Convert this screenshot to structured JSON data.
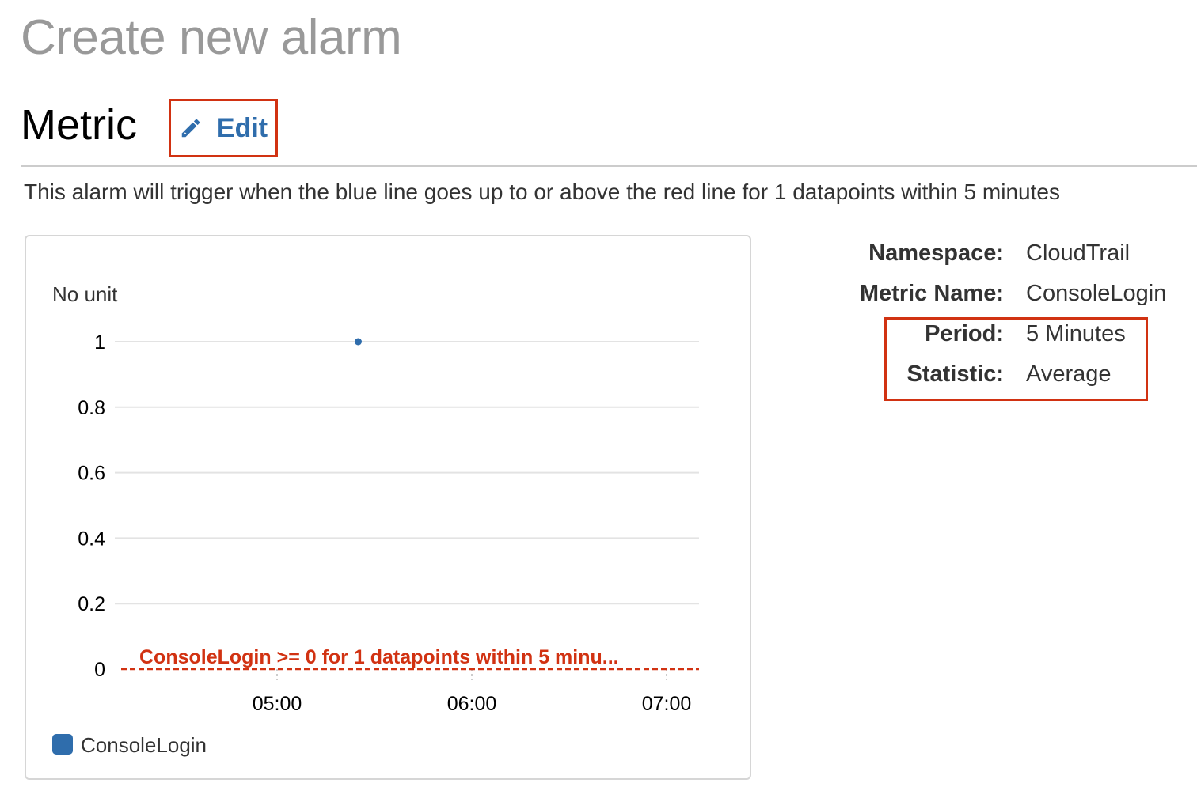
{
  "page": {
    "title": "Create new alarm"
  },
  "metric_section": {
    "title": "Metric",
    "edit_label": "Edit",
    "edit_icon": "pencil-icon",
    "description": "This alarm will trigger when the blue line goes up to or above the red line for 1 datapoints within 5 minutes"
  },
  "details": {
    "namespace_label": "Namespace:",
    "namespace_value": "CloudTrail",
    "metric_name_label": "Metric Name:",
    "metric_name_value": "ConsoleLogin",
    "period_label": "Period:",
    "period_value": "5 Minutes",
    "statistic_label": "Statistic:",
    "statistic_value": "Average"
  },
  "colors": {
    "series": "#2f6dac",
    "threshold": "#d13212",
    "highlight": "#d13212",
    "link": "#2f6dac"
  },
  "chart_data": {
    "type": "scatter",
    "ylabel": "No unit",
    "ylim": [
      0,
      1
    ],
    "y_ticks": [
      "1",
      "0.8",
      "0.6",
      "0.4",
      "0.2",
      "0"
    ],
    "y_tick_values": [
      1,
      0.8,
      0.6,
      0.4,
      0.2,
      0
    ],
    "xlim": [
      "04:10",
      "07:10"
    ],
    "x_ticks": [
      "05:00",
      "06:00",
      "07:00"
    ],
    "series": [
      {
        "name": "ConsoleLogin",
        "points": [
          {
            "x": "05:25",
            "y": 1
          }
        ]
      }
    ],
    "threshold": {
      "value": 0,
      "label": "ConsoleLogin >= 0 for 1 datapoints within 5 minu..."
    },
    "grid": true,
    "legend": "bottom-left"
  }
}
